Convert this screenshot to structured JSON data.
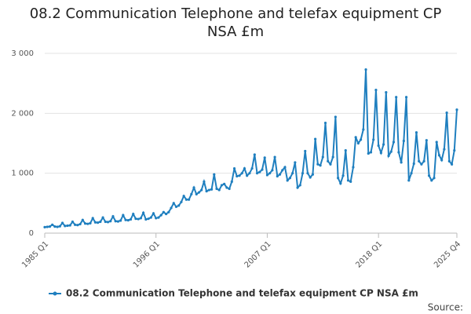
{
  "chart_data": {
    "type": "line",
    "title": "08.2 Communication Telephone and telefax equipment CP NSA £m",
    "categories": [
      "1985 Q1",
      null,
      null,
      null,
      null,
      null,
      null,
      null,
      null,
      null,
      null,
      null,
      null,
      null,
      null,
      null,
      null,
      null,
      null,
      null,
      null,
      null,
      null,
      null,
      null,
      null,
      null,
      null,
      null,
      null,
      null,
      null,
      null,
      null,
      null,
      null,
      null,
      null,
      null,
      null,
      null,
      null,
      null,
      null,
      "1996 Q1",
      null,
      null,
      null,
      null,
      null,
      null,
      null,
      null,
      null,
      null,
      null,
      null,
      null,
      null,
      null,
      null,
      null,
      null,
      null,
      null,
      null,
      null,
      null,
      null,
      null,
      null,
      null,
      null,
      null,
      null,
      null,
      null,
      null,
      null,
      null,
      null,
      null,
      null,
      null,
      null,
      null,
      null,
      null,
      "2007 Q1",
      null,
      null,
      null,
      null,
      null,
      null,
      null,
      null,
      null,
      null,
      null,
      null,
      null,
      null,
      null,
      null,
      null,
      null,
      null,
      null,
      null,
      null,
      null,
      null,
      null,
      null,
      null,
      null,
      null,
      null,
      null,
      null,
      null,
      null,
      null,
      null,
      null,
      null,
      null,
      null,
      null,
      null,
      null,
      "2018 Q1",
      null,
      null,
      null,
      null,
      null,
      null,
      null,
      null,
      null,
      null,
      null,
      null,
      null,
      null,
      null,
      null,
      null,
      null,
      null,
      null,
      null,
      null,
      null,
      null,
      null,
      null,
      null,
      null,
      null,
      null,
      "2025 Q4"
    ],
    "series": [
      {
        "name": "08.2 Communication Telephone and telefax equipment CP NSA £m",
        "color": "#1f7fbf",
        "values": [
          100,
          105,
          110,
          140,
          110,
          105,
          115,
          170,
          120,
          125,
          130,
          190,
          140,
          135,
          150,
          220,
          160,
          155,
          165,
          250,
          180,
          175,
          190,
          260,
          190,
          185,
          200,
          280,
          200,
          195,
          210,
          300,
          220,
          215,
          230,
          320,
          240,
          235,
          250,
          340,
          230,
          240,
          260,
          330,
          250,
          260,
          300,
          350,
          320,
          350,
          420,
          500,
          440,
          460,
          520,
          620,
          560,
          560,
          650,
          760,
          650,
          680,
          720,
          860,
          700,
          720,
          730,
          980,
          740,
          720,
          800,
          820,
          760,
          740,
          860,
          1080,
          950,
          960,
          1000,
          1080,
          960,
          1000,
          1080,
          1310,
          1000,
          1020,
          1060,
          1260,
          970,
          1000,
          1050,
          1270,
          950,
          980,
          1050,
          1100,
          880,
          920,
          1000,
          1180,
          760,
          800,
          1000,
          1370,
          1000,
          930,
          980,
          1570,
          1150,
          1130,
          1270,
          1840,
          1200,
          1150,
          1270,
          1940,
          920,
          830,
          960,
          1380,
          880,
          860,
          1100,
          1600,
          1500,
          1560,
          1730,
          2730,
          1330,
          1350,
          1560,
          2390,
          1460,
          1340,
          1480,
          2350,
          1290,
          1360,
          1520,
          2270,
          1350,
          1180,
          1540,
          2270,
          880,
          1000,
          1160,
          1680,
          1200,
          1150,
          1200,
          1550,
          960,
          880,
          920,
          1520,
          1300,
          1220,
          1400,
          2010,
          1200,
          1150,
          1380,
          2060
        ]
      }
    ],
    "ylim": [
      0,
      3000
    ],
    "yticks": [
      0,
      {
        "value": 1000,
        "label": "1 000"
      },
      {
        "value": 2000,
        "label": "2 000"
      },
      {
        "value": 3000,
        "label": "3 000"
      }
    ],
    "grid": true,
    "source": "Source:"
  }
}
